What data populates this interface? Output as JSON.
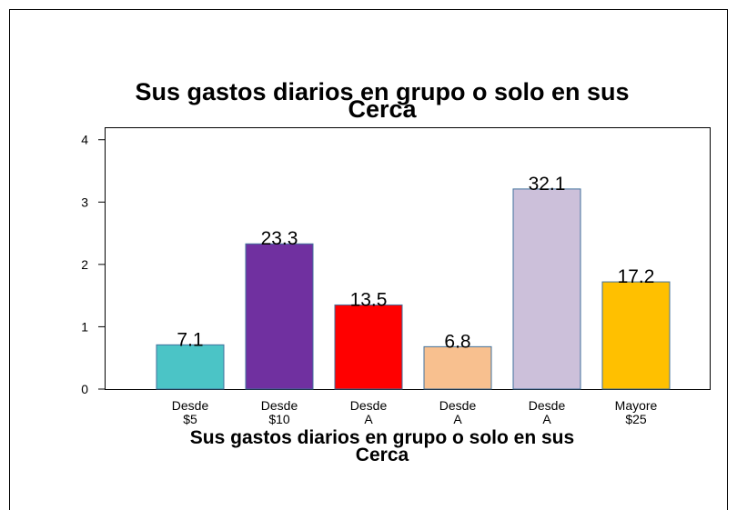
{
  "chart_data": {
    "type": "bar",
    "title": [
      "Sus gastos diarios en grupo o solo en sus",
      "Cerca"
    ],
    "x_label": [
      "Sus gastos diarios en grupo o solo en sus",
      "Cerca"
    ],
    "categories": [
      [
        "Desde",
        "$5"
      ],
      [
        "Desde",
        "$10"
      ],
      [
        "Desde",
        "A"
      ],
      [
        "Desde",
        "A"
      ],
      [
        "Desde",
        "A"
      ],
      [
        "Mayore",
        "$25"
      ]
    ],
    "values": [
      0.71,
      2.33,
      1.35,
      0.68,
      3.21,
      1.72
    ],
    "value_labels": [
      "7.1",
      "23.3",
      "13.5",
      "6.8",
      "32.1",
      "17.2"
    ],
    "colors": [
      "#4bc4c6",
      "#7030a0",
      "#ff0000",
      "#f8c08f",
      "#ccc0da",
      "#ffc000"
    ],
    "ylim": [
      0,
      4.2
    ],
    "yticks": [
      0,
      1,
      2,
      3,
      4
    ]
  }
}
